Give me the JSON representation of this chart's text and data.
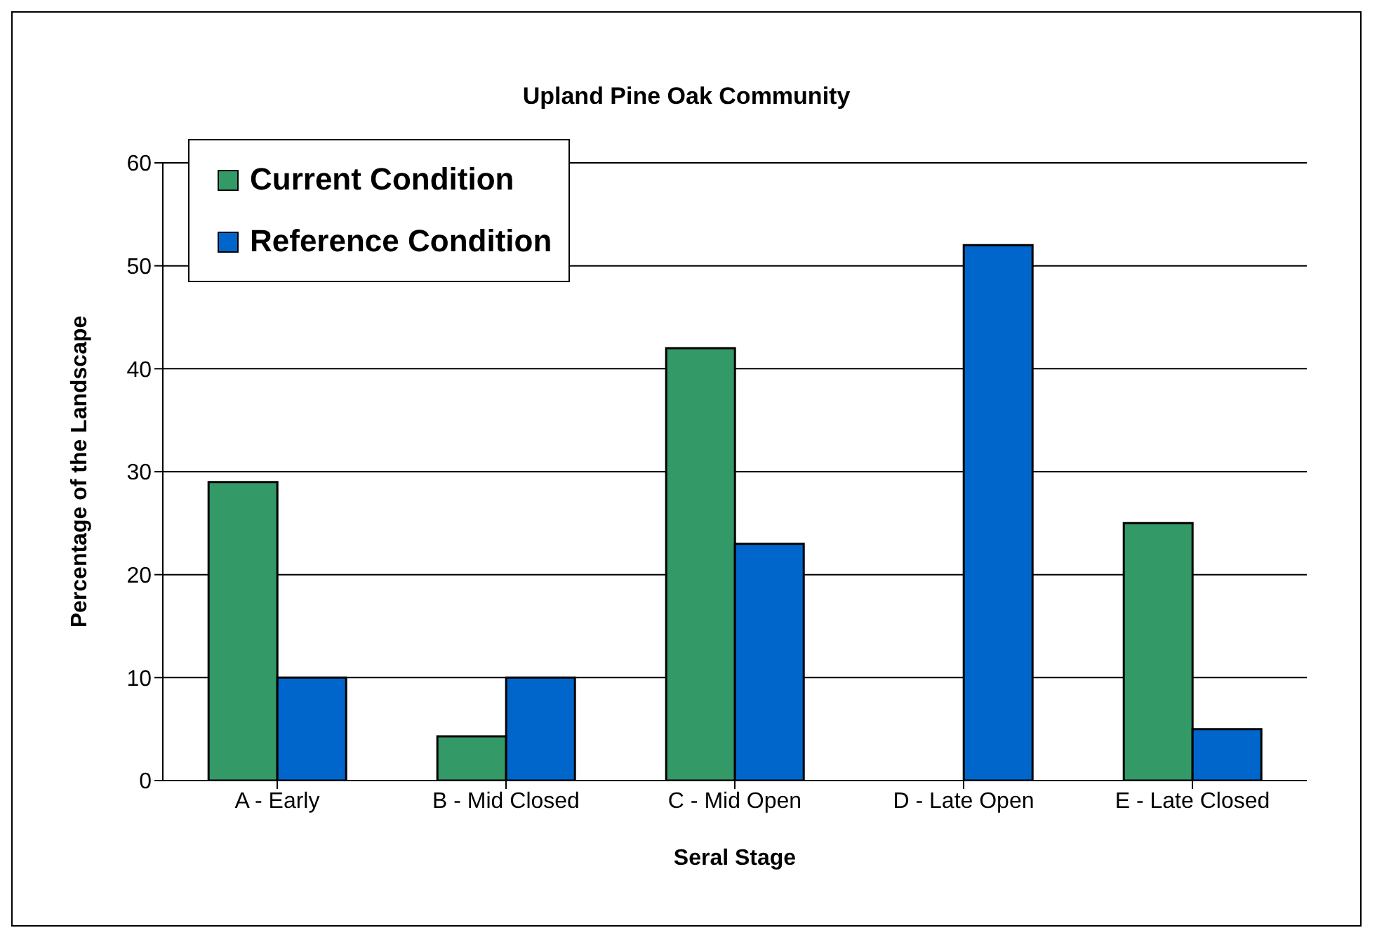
{
  "chart_data": {
    "type": "bar",
    "title": "Upland Pine Oak Community",
    "xlabel": "Seral Stage",
    "ylabel": "Percentage of the Landscape",
    "categories": [
      "A - Early",
      "B - Mid Closed",
      "C - Mid Open",
      "D - Late Open",
      "E - Late Closed"
    ],
    "series": [
      {
        "name": "Current Condition",
        "color": "#339966",
        "values": [
          29,
          4.3,
          42,
          0,
          25
        ]
      },
      {
        "name": "Reference Condition",
        "color": "#0066cc",
        "values": [
          10,
          10,
          23,
          52,
          5
        ]
      }
    ],
    "ylim": [
      0,
      60
    ],
    "yticks": [
      0,
      10,
      20,
      30,
      40,
      50,
      60
    ],
    "grid": "y",
    "legend": "top left"
  }
}
